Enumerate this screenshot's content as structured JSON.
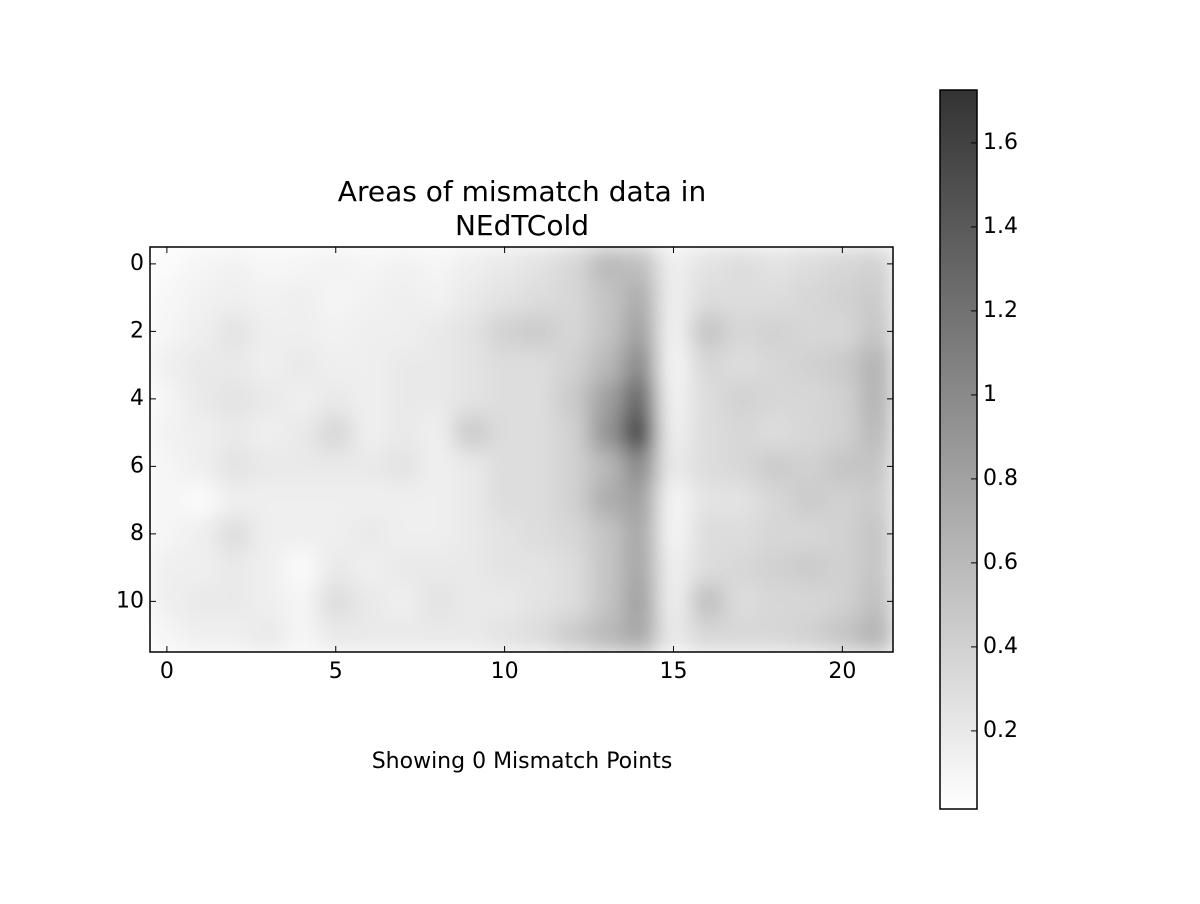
{
  "chart_data": {
    "type": "heatmap",
    "title": [
      "Areas of mismatch data in",
      "NEdTCold"
    ],
    "xlabel": "Showing 0 Mismatch Points",
    "xlim": [
      -0.5,
      21.5
    ],
    "xticks": [
      0,
      5,
      10,
      15,
      20
    ],
    "ylim": [
      11.5,
      -0.5
    ],
    "yticks": [
      0,
      2,
      4,
      6,
      8,
      10
    ],
    "clim": [
      0.014,
      1.726
    ],
    "cticks": [
      0.2,
      0.4,
      0.6,
      0.8,
      1,
      1.2,
      1.4,
      1.6
    ],
    "colormap": [
      "#ffffff",
      "#333333"
    ],
    "z": [
      [
        0.05,
        0.1,
        0.12,
        0.08,
        0.1,
        0.12,
        0.1,
        0.12,
        0.1,
        0.15,
        0.2,
        0.25,
        0.35,
        0.6,
        0.55,
        0.15,
        0.25,
        0.3,
        0.25,
        0.3,
        0.35,
        0.4
      ],
      [
        0.08,
        0.12,
        0.15,
        0.12,
        0.15,
        0.1,
        0.12,
        0.15,
        0.12,
        0.2,
        0.25,
        0.3,
        0.35,
        0.5,
        0.7,
        0.15,
        0.3,
        0.3,
        0.3,
        0.35,
        0.4,
        0.45
      ],
      [
        0.1,
        0.15,
        0.25,
        0.15,
        0.15,
        0.12,
        0.15,
        0.15,
        0.2,
        0.25,
        0.4,
        0.45,
        0.35,
        0.5,
        0.8,
        0.12,
        0.5,
        0.35,
        0.4,
        0.35,
        0.35,
        0.5
      ],
      [
        0.15,
        0.2,
        0.2,
        0.15,
        0.2,
        0.15,
        0.15,
        0.2,
        0.2,
        0.25,
        0.3,
        0.3,
        0.4,
        0.6,
        1.0,
        0.1,
        0.35,
        0.3,
        0.35,
        0.4,
        0.45,
        0.65
      ],
      [
        0.1,
        0.2,
        0.25,
        0.2,
        0.15,
        0.2,
        0.15,
        0.2,
        0.2,
        0.25,
        0.3,
        0.3,
        0.45,
        0.8,
        1.3,
        0.12,
        0.3,
        0.4,
        0.35,
        0.35,
        0.4,
        0.65
      ],
      [
        0.12,
        0.15,
        0.2,
        0.15,
        0.2,
        0.35,
        0.15,
        0.2,
        0.15,
        0.45,
        0.3,
        0.3,
        0.4,
        0.9,
        1.6,
        0.15,
        0.3,
        0.35,
        0.3,
        0.35,
        0.4,
        0.6
      ],
      [
        0.1,
        0.15,
        0.25,
        0.2,
        0.2,
        0.2,
        0.2,
        0.25,
        0.15,
        0.2,
        0.3,
        0.3,
        0.4,
        0.6,
        1.0,
        0.2,
        0.3,
        0.35,
        0.45,
        0.4,
        0.5,
        0.5
      ],
      [
        0.1,
        0.05,
        0.15,
        0.15,
        0.15,
        0.15,
        0.15,
        0.15,
        0.15,
        0.2,
        0.3,
        0.3,
        0.4,
        0.7,
        0.8,
        0.1,
        0.25,
        0.25,
        0.35,
        0.45,
        0.4,
        0.45
      ],
      [
        0.1,
        0.15,
        0.3,
        0.15,
        0.15,
        0.15,
        0.2,
        0.15,
        0.15,
        0.2,
        0.25,
        0.3,
        0.35,
        0.5,
        0.75,
        0.1,
        0.3,
        0.3,
        0.35,
        0.35,
        0.4,
        0.5
      ],
      [
        0.15,
        0.15,
        0.2,
        0.15,
        0.05,
        0.2,
        0.15,
        0.2,
        0.2,
        0.2,
        0.25,
        0.25,
        0.3,
        0.5,
        0.75,
        0.15,
        0.3,
        0.35,
        0.4,
        0.45,
        0.4,
        0.5
      ],
      [
        0.15,
        0.2,
        0.2,
        0.15,
        0.1,
        0.3,
        0.2,
        0.15,
        0.25,
        0.2,
        0.2,
        0.25,
        0.3,
        0.5,
        0.8,
        0.15,
        0.55,
        0.3,
        0.35,
        0.35,
        0.4,
        0.55
      ],
      [
        0.1,
        0.15,
        0.15,
        0.2,
        0.1,
        0.2,
        0.2,
        0.2,
        0.2,
        0.2,
        0.25,
        0.3,
        0.45,
        0.6,
        0.75,
        0.2,
        0.35,
        0.35,
        0.35,
        0.4,
        0.5,
        0.65
      ]
    ]
  }
}
